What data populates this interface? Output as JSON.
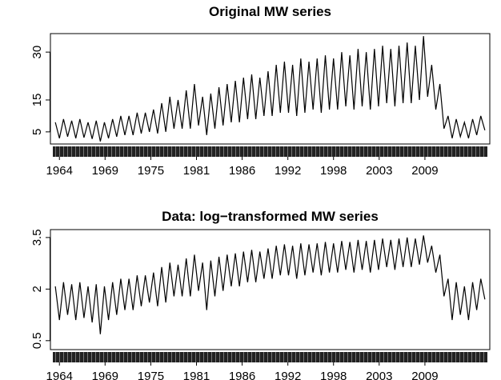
{
  "chart_data": [
    {
      "type": "line",
      "title": "Original MW series",
      "x": [
        1963.5,
        1964,
        1964.5,
        1965,
        1965.5,
        1966,
        1966.5,
        1967,
        1967.5,
        1968,
        1968.5,
        1969,
        1969.5,
        1970,
        1970.5,
        1971,
        1971.5,
        1972,
        1972.5,
        1973,
        1973.5,
        1974,
        1974.5,
        1975,
        1975.5,
        1976,
        1976.5,
        1977,
        1977.5,
        1978,
        1978.5,
        1979,
        1979.5,
        1980,
        1980.5,
        1981,
        1981.5,
        1982,
        1982.5,
        1983,
        1983.5,
        1984,
        1984.5,
        1985,
        1985.5,
        1986,
        1986.5,
        1987,
        1987.5,
        1988,
        1988.5,
        1989,
        1989.5,
        1990,
        1990.5,
        1991,
        1991.5,
        1992,
        1992.5,
        1993,
        1993.5,
        1994,
        1994.5,
        1995,
        1995.5,
        1996,
        1996.5,
        1997,
        1997.5,
        1998,
        1998.5,
        1999,
        1999.5,
        2000,
        2000.5,
        2001,
        2001.5,
        2002,
        2002.5,
        2003,
        2003.5,
        2004,
        2004.5,
        2005,
        2005.5,
        2006,
        2006.5,
        2007,
        2007.5,
        2008,
        2008.5,
        2009,
        2009.5,
        2010,
        2010.5,
        2011,
        2011.5,
        2012,
        2012.5,
        2013,
        2013.5,
        2014,
        2014.5,
        2015,
        2015.5,
        2016
      ],
      "values": [
        8,
        3,
        9,
        3.5,
        8.5,
        3,
        9,
        3.2,
        8,
        2.8,
        8.5,
        2,
        8,
        3,
        9,
        3.5,
        10,
        4,
        10,
        4,
        11,
        4.5,
        11,
        5,
        12,
        4.5,
        14,
        5,
        16,
        6,
        15,
        6,
        18,
        6,
        20,
        7,
        16,
        4,
        17,
        6,
        19,
        7,
        20,
        8,
        21,
        8,
        22,
        9,
        23,
        9,
        22,
        10,
        24,
        10,
        26,
        11,
        27,
        11,
        26,
        10,
        28,
        11,
        27,
        12,
        28,
        11,
        29,
        12,
        28,
        12,
        30,
        13,
        29,
        12,
        31,
        13,
        30,
        12,
        31,
        13,
        32,
        14,
        31,
        13,
        32,
        14,
        33,
        14,
        32,
        15,
        35,
        16,
        26,
        12,
        20,
        6,
        10,
        3,
        9,
        3.5,
        8,
        3,
        9,
        4,
        10,
        5.5
      ],
      "color": "#000000",
      "xlim": [
        1962.9,
        2016.6
      ],
      "xticks": [
        {
          "value": 1964,
          "label": "1964"
        },
        {
          "value": 1969.58,
          "label": "1969"
        },
        {
          "value": 1975.17,
          "label": "1975"
        },
        {
          "value": 1980.75,
          "label": "1981"
        },
        {
          "value": 1986.33,
          "label": "1986"
        },
        {
          "value": 1991.92,
          "label": "1992"
        },
        {
          "value": 1997.5,
          "label": "1998"
        },
        {
          "value": 2003.08,
          "label": "2003"
        },
        {
          "value": 2008.67,
          "label": "2009"
        }
      ],
      "ylim": [
        1.2,
        35.8
      ],
      "yticks": [
        5,
        15,
        30
      ]
    },
    {
      "type": "line",
      "title": "Data: log−transformed MW series",
      "x": [
        1963.5,
        1964,
        1964.5,
        1965,
        1965.5,
        1966,
        1966.5,
        1967,
        1967.5,
        1968,
        1968.5,
        1969,
        1969.5,
        1970,
        1970.5,
        1971,
        1971.5,
        1972,
        1972.5,
        1973,
        1973.5,
        1974,
        1974.5,
        1975,
        1975.5,
        1976,
        1976.5,
        1977,
        1977.5,
        1978,
        1978.5,
        1979,
        1979.5,
        1980,
        1980.5,
        1981,
        1981.5,
        1982,
        1982.5,
        1983,
        1983.5,
        1984,
        1984.5,
        1985,
        1985.5,
        1986,
        1986.5,
        1987,
        1987.5,
        1988,
        1988.5,
        1989,
        1989.5,
        1990,
        1990.5,
        1991,
        1991.5,
        1992,
        1992.5,
        1993,
        1993.5,
        1994,
        1994.5,
        1995,
        1995.5,
        1996,
        1996.5,
        1997,
        1997.5,
        1998,
        1998.5,
        1999,
        1999.5,
        2000,
        2000.5,
        2001,
        2001.5,
        2002,
        2002.5,
        2003,
        2003.5,
        2004,
        2004.5,
        2005,
        2005.5,
        2006,
        2006.5,
        2007,
        2007.5,
        2008,
        2008.5,
        2009,
        2009.5,
        2010,
        2010.5,
        2011,
        2011.5,
        2012,
        2012.5,
        2013,
        2013.5,
        2014,
        2014.5,
        2015,
        2015.5,
        2016
      ],
      "values": [
        2.08,
        1.1,
        2.2,
        1.25,
        2.14,
        1.1,
        2.2,
        1.16,
        2.08,
        1.03,
        2.14,
        0.69,
        2.08,
        1.1,
        2.2,
        1.25,
        2.3,
        1.39,
        2.3,
        1.39,
        2.4,
        1.5,
        2.4,
        1.61,
        2.48,
        1.5,
        2.64,
        1.61,
        2.77,
        1.79,
        2.71,
        1.79,
        2.89,
        1.79,
        3.0,
        1.95,
        2.77,
        1.39,
        2.83,
        1.79,
        2.94,
        1.95,
        3.0,
        2.08,
        3.04,
        2.08,
        3.09,
        2.2,
        3.14,
        2.2,
        3.09,
        2.3,
        3.18,
        2.3,
        3.26,
        2.4,
        3.3,
        2.4,
        3.26,
        2.3,
        3.33,
        2.4,
        3.3,
        2.48,
        3.33,
        2.4,
        3.37,
        2.48,
        3.33,
        2.48,
        3.4,
        2.56,
        3.37,
        2.48,
        3.43,
        2.56,
        3.4,
        2.48,
        3.43,
        2.56,
        3.47,
        2.64,
        3.43,
        2.56,
        3.47,
        2.64,
        3.5,
        2.64,
        3.47,
        2.71,
        3.56,
        2.77,
        3.26,
        2.48,
        3.0,
        1.79,
        2.3,
        1.1,
        2.2,
        1.25,
        2.08,
        1.1,
        2.2,
        1.39,
        2.3,
        1.7
      ],
      "color": "#000000",
      "xlim": [
        1962.9,
        2016.6
      ],
      "xticks": [
        {
          "value": 1964,
          "label": "1964"
        },
        {
          "value": 1969.58,
          "label": "1969"
        },
        {
          "value": 1975.17,
          "label": "1975"
        },
        {
          "value": 1980.75,
          "label": "1981"
        },
        {
          "value": 1986.33,
          "label": "1986"
        },
        {
          "value": 1991.92,
          "label": "1992"
        },
        {
          "value": 1997.5,
          "label": "1998"
        },
        {
          "value": 2003.08,
          "label": "2003"
        },
        {
          "value": 2008.67,
          "label": "2009"
        }
      ],
      "ylim": [
        0.24,
        3.73
      ],
      "yticks": [
        0.5,
        2.0,
        3.5
      ]
    }
  ]
}
